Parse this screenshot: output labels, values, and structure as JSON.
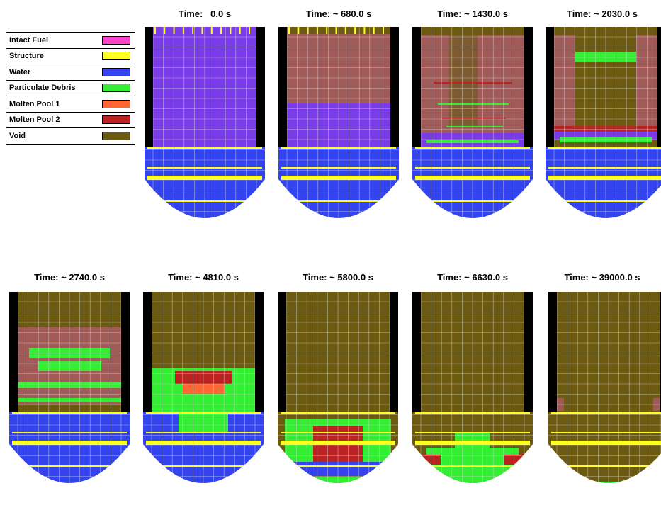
{
  "legend": {
    "items": [
      {
        "label": "Intact Fuel",
        "color": "#ff44cc"
      },
      {
        "label": "Structure",
        "color": "#ffff22"
      },
      {
        "label": "Water",
        "color": "#3344ee"
      },
      {
        "label": "Particulate Debris",
        "color": "#33ee33"
      },
      {
        "label": "Molten Pool 1",
        "color": "#ff6633"
      },
      {
        "label": "Molten Pool 2",
        "color": "#bb2222"
      },
      {
        "label": "Void",
        "color": "#6b5a10"
      }
    ]
  },
  "snapshots": [
    {
      "title": "Time:   0.0 s"
    },
    {
      "title": "Time: ~ 680.0 s"
    },
    {
      "title": "Time: ~ 1430.0 s"
    },
    {
      "title": "Time: ~ 2030.0 s"
    },
    {
      "title": "Time: ~ 2740.0 s"
    },
    {
      "title": "Time: ~ 4810.0 s"
    },
    {
      "title": "Time: ~ 5800.0 s"
    },
    {
      "title": "Time: ~ 6630.0 s"
    },
    {
      "title": "Time: ~ 39000.0 s"
    }
  ]
}
